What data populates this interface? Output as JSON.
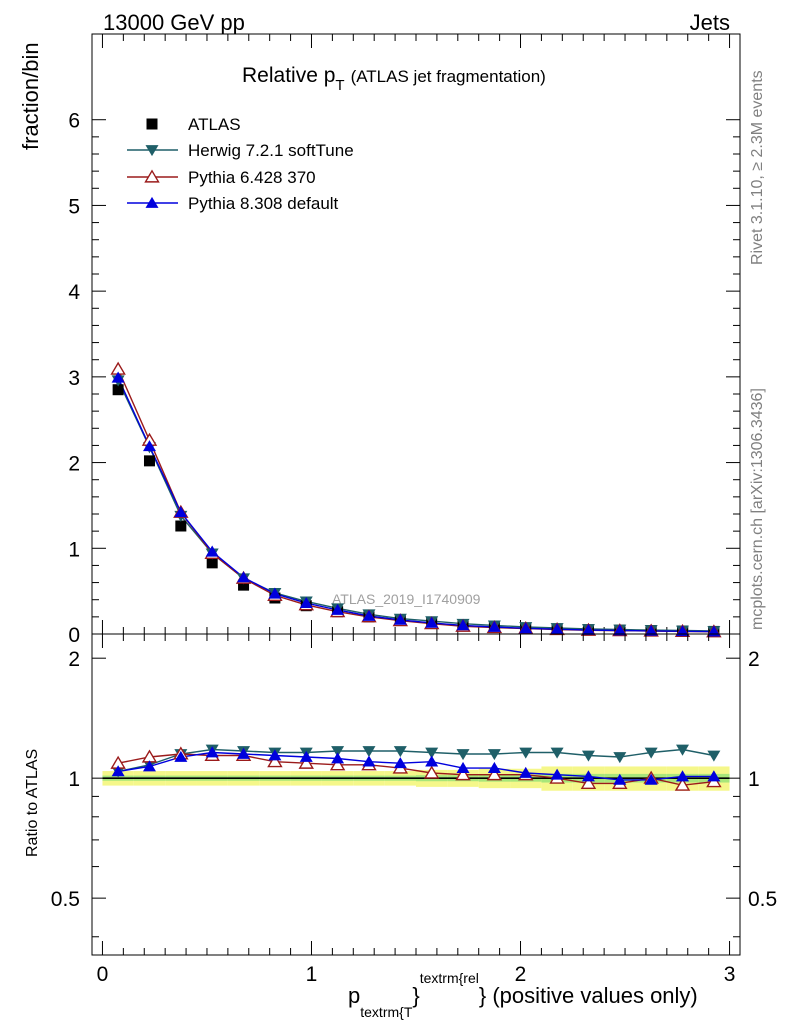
{
  "header": {
    "left": "13000 GeV pp",
    "right": "Jets"
  },
  "side_labels": {
    "rivet": "Rivet 3.1.10, ≥ 2.3M events",
    "mcplots": "mcplots.cern.ch [arXiv:1306.3436]"
  },
  "watermark": "ATLAS_2019_I1740909",
  "chart_data": {
    "type": "scatter",
    "title": {
      "main": "Relative p",
      "sub": "T",
      "detail": "(ATLAS jet fragmentation)"
    },
    "ylabel": "fraction/bin",
    "ratio_ylabel": "Ratio to ATLAS",
    "xlabel": {
      "p": "p",
      "sub": "textrm{T",
      "sup": "textrm{rel",
      "brace": "}",
      "rest": " (positive values only)"
    },
    "xlim": [
      -0.05,
      3.05
    ],
    "ylim": [
      0,
      7.0
    ],
    "ratio_ylim": [
      0.36,
      2.3
    ],
    "x_ticks": [
      "0",
      "1",
      "2",
      "3"
    ],
    "y_ticks": [
      "0",
      "1",
      "2",
      "3",
      "4",
      "5",
      "6"
    ],
    "ratio_ticks": [
      "0.5",
      "1",
      "2"
    ],
    "x": [
      0.075,
      0.225,
      0.375,
      0.525,
      0.675,
      0.825,
      0.975,
      1.125,
      1.275,
      1.425,
      1.575,
      1.725,
      1.875,
      2.025,
      2.175,
      2.325,
      2.475,
      2.625,
      2.775,
      2.925
    ],
    "series": [
      {
        "name": "ATLAS",
        "color": "#000000",
        "marker": "square",
        "values": [
          2.85,
          2.02,
          1.26,
          0.83,
          0.57,
          0.42,
          0.33,
          0.26,
          0.2,
          0.16,
          0.13,
          0.1,
          0.085,
          0.07,
          0.06,
          0.05,
          0.045,
          0.04,
          0.035,
          0.03
        ],
        "band": [
          0.03,
          0.03,
          0.03,
          0.03,
          0.03,
          0.03,
          0.03,
          0.03,
          0.03,
          0.03,
          0.035,
          0.035,
          0.04,
          0.04,
          0.05,
          0.05,
          0.05,
          0.05,
          0.05,
          0.05
        ]
      },
      {
        "name": "Herwig 7.2.1 softTune",
        "color": "#1f5f68",
        "marker": "tri-down",
        "values": [
          2.96,
          2.18,
          1.38,
          0.94,
          0.65,
          0.48,
          0.38,
          0.3,
          0.23,
          0.18,
          0.15,
          0.12,
          0.1,
          0.082,
          0.07,
          0.058,
          0.052,
          0.046,
          0.041,
          0.035
        ],
        "ratio": [
          1.04,
          1.08,
          1.15,
          1.18,
          1.17,
          1.16,
          1.16,
          1.17,
          1.17,
          1.17,
          1.16,
          1.15,
          1.15,
          1.16,
          1.16,
          1.14,
          1.13,
          1.16,
          1.18,
          1.14
        ]
      },
      {
        "name": "Pythia 6.428 370",
        "color": "#9b1b1b",
        "marker": "tri-up-open",
        "values": [
          3.09,
          2.26,
          1.42,
          0.94,
          0.65,
          0.45,
          0.34,
          0.26,
          0.2,
          0.155,
          0.12,
          0.09,
          0.075,
          0.063,
          0.052,
          0.043,
          0.039,
          0.035,
          0.03,
          0.026
        ],
        "ratio": [
          1.09,
          1.13,
          1.15,
          1.14,
          1.14,
          1.1,
          1.09,
          1.08,
          1.08,
          1.06,
          1.03,
          1.02,
          1.02,
          1.02,
          1.0,
          0.97,
          0.97,
          1.0,
          0.96,
          0.98
        ]
      },
      {
        "name": "Pythia 8.308 default",
        "color": "#0000dd",
        "marker": "tri-up",
        "values": [
          2.99,
          2.19,
          1.42,
          0.96,
          0.66,
          0.47,
          0.36,
          0.28,
          0.21,
          0.165,
          0.13,
          0.1,
          0.082,
          0.066,
          0.056,
          0.046,
          0.041,
          0.036,
          0.032,
          0.028
        ],
        "ratio": [
          1.04,
          1.07,
          1.13,
          1.16,
          1.15,
          1.14,
          1.13,
          1.12,
          1.1,
          1.09,
          1.1,
          1.06,
          1.06,
          1.03,
          1.02,
          1.01,
          0.99,
          0.99,
          1.01,
          1.01
        ]
      }
    ]
  }
}
